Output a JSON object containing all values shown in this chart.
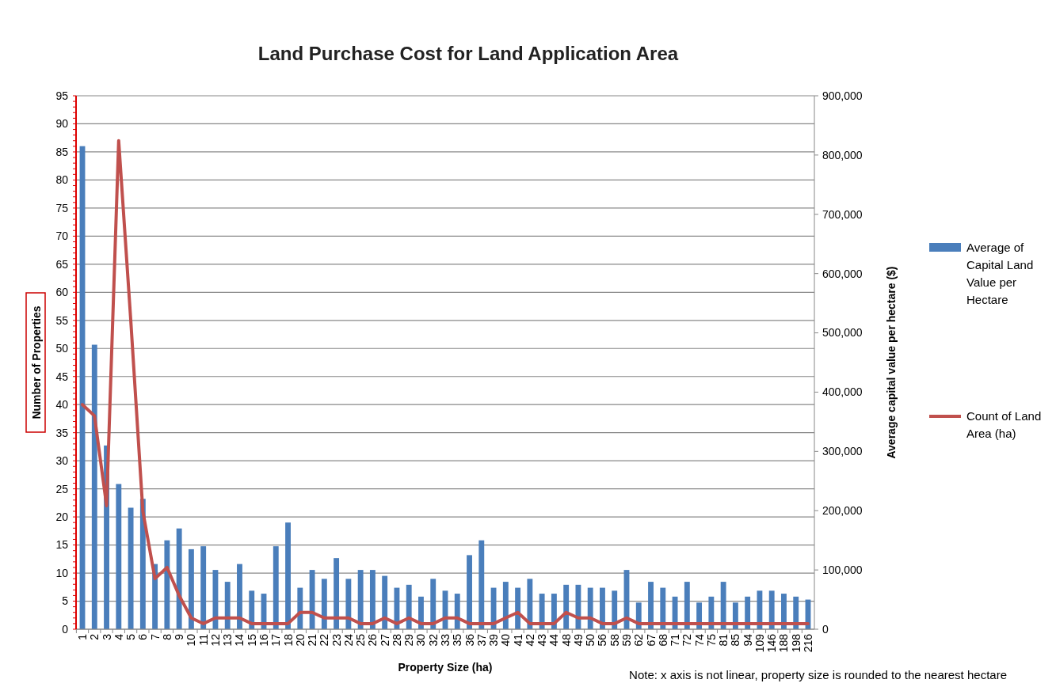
{
  "chart_data": {
    "type": "bar",
    "title": "Land Purchase Cost for Land Application Area",
    "xlabel": "Property Size (ha)",
    "ylabel": "Number of Properties",
    "y2label": "Average capital value per hectare ($)",
    "categories": [
      "1",
      "2",
      "3",
      "4",
      "5",
      "6",
      "7",
      "8",
      "9",
      "10",
      "11",
      "12",
      "13",
      "14",
      "15",
      "16",
      "17",
      "18",
      "20",
      "21",
      "22",
      "23",
      "24",
      "25",
      "26",
      "27",
      "28",
      "29",
      "30",
      "32",
      "33",
      "35",
      "36",
      "37",
      "39",
      "40",
      "41",
      "42",
      "43",
      "44",
      "48",
      "49",
      "50",
      "56",
      "58",
      "59",
      "62",
      "67",
      "68",
      "71",
      "72",
      "74",
      "75",
      "81",
      "85",
      "94",
      "109",
      "146",
      "188",
      "198",
      "216"
    ],
    "series": [
      {
        "name": "Average of Capital Land Value per Hectare",
        "axis": "y2",
        "color": "#4a7ebb",
        "values": [
          815000,
          480000,
          310000,
          245000,
          205000,
          220000,
          110000,
          150000,
          170000,
          135000,
          140000,
          100000,
          80000,
          110000,
          65000,
          60000,
          140000,
          180000,
          70000,
          100000,
          85000,
          120000,
          85000,
          100000,
          100000,
          90000,
          70000,
          75000,
          55000,
          85000,
          65000,
          60000,
          125000,
          150000,
          70000,
          80000,
          70000,
          85000,
          60000,
          60000,
          75000,
          75000,
          70000,
          70000,
          65000,
          100000,
          45000,
          80000,
          70000,
          55000,
          80000,
          45000,
          55000,
          80000,
          45000,
          55000,
          65000,
          65000,
          60000,
          55000,
          50000
        ]
      },
      {
        "name": "Count of Land Area (ha)",
        "type": "line",
        "axis": "y",
        "color": "#c0504d",
        "values": [
          40,
          38,
          22,
          87,
          55,
          21,
          9,
          11,
          6,
          2,
          1,
          2,
          2,
          2,
          1,
          1,
          1,
          1,
          3,
          3,
          2,
          2,
          2,
          1,
          1,
          2,
          1,
          2,
          1,
          1,
          2,
          2,
          1,
          1,
          1,
          2,
          3,
          1,
          1,
          1,
          3,
          2,
          2,
          1,
          1,
          2,
          1,
          1,
          1,
          1,
          1,
          1,
          1,
          1,
          1,
          1,
          1,
          1,
          1,
          1,
          1
        ]
      }
    ],
    "ylim": [
      0,
      95
    ],
    "yticks": [
      0,
      5,
      10,
      15,
      20,
      25,
      30,
      35,
      40,
      45,
      50,
      55,
      60,
      65,
      70,
      75,
      80,
      85,
      90,
      95
    ],
    "y2lim": [
      0,
      900000
    ],
    "y2ticks": [
      {
        "value": 0,
        "label": "0"
      },
      {
        "value": 100000,
        "label": "100,000"
      },
      {
        "value": 200000,
        "label": "200,000"
      },
      {
        "value": 300000,
        "label": "300,000"
      },
      {
        "value": 400000,
        "label": "400,000"
      },
      {
        "value": 500000,
        "label": "500,000"
      },
      {
        "value": 600000,
        "label": "600,000"
      },
      {
        "value": 700000,
        "label": "700,000"
      },
      {
        "value": 800000,
        "label": "800,000"
      },
      {
        "value": 900000,
        "label": "900,000"
      }
    ],
    "grid": "y",
    "legend": "right",
    "annotations": [
      "Note: x axis is not linear, property size is rounded to the nearest hectare"
    ]
  }
}
